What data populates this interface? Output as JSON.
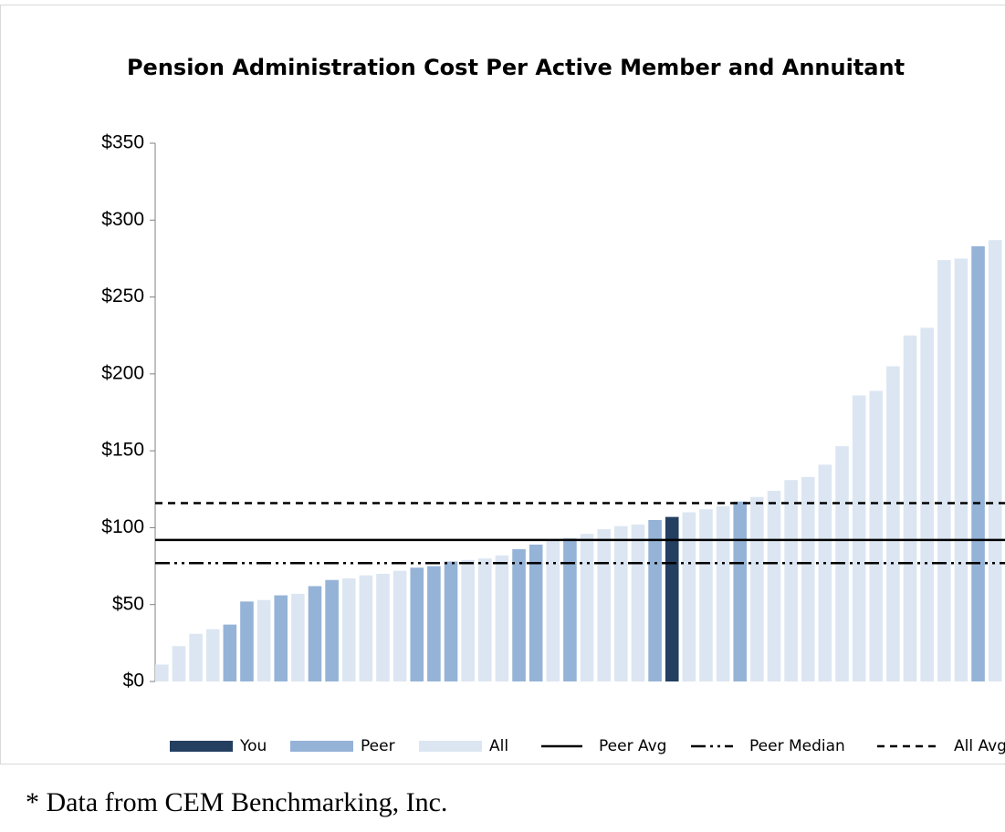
{
  "chart_data": {
    "type": "bar",
    "title": "Pension Administration Cost Per Active Member and Annuitant",
    "categories": [
      null,
      null,
      null,
      null,
      null,
      null,
      null,
      null,
      null,
      null,
      null,
      null,
      null,
      null,
      null,
      null,
      null,
      null,
      null,
      null,
      null,
      null,
      null,
      null,
      null,
      null,
      null,
      null,
      null,
      null,
      null,
      null,
      null,
      null,
      null,
      null,
      null,
      null,
      null,
      null,
      null,
      null,
      null,
      null,
      null,
      null,
      null,
      null,
      null,
      null
    ],
    "series": [
      {
        "name": "You",
        "color": "#243f60",
        "values": [
          null,
          null,
          null,
          null,
          null,
          null,
          null,
          null,
          null,
          null,
          null,
          null,
          null,
          null,
          null,
          null,
          null,
          null,
          null,
          null,
          null,
          null,
          null,
          null,
          null,
          null,
          null,
          null,
          null,
          null,
          107,
          null,
          null,
          null,
          null,
          null,
          null,
          null,
          null,
          null,
          null,
          null,
          null,
          null,
          null,
          null,
          null,
          null,
          null,
          null
        ]
      },
      {
        "name": "Peer",
        "color": "#95b3d7",
        "values": [
          null,
          null,
          null,
          null,
          37,
          52,
          null,
          56,
          null,
          62,
          66,
          null,
          null,
          null,
          null,
          74,
          75,
          78,
          null,
          null,
          null,
          86,
          89,
          null,
          93,
          null,
          null,
          null,
          null,
          105,
          null,
          null,
          null,
          null,
          117,
          null,
          null,
          null,
          null,
          null,
          null,
          null,
          null,
          null,
          null,
          null,
          null,
          null,
          283,
          null
        ]
      },
      {
        "name": "All",
        "color": "#dce6f2",
        "values": [
          11,
          23,
          31,
          34,
          null,
          null,
          53,
          null,
          57,
          null,
          null,
          67,
          69,
          70,
          72,
          null,
          null,
          null,
          79,
          80,
          82,
          null,
          null,
          92,
          null,
          96,
          99,
          101,
          102,
          null,
          null,
          110,
          112,
          114,
          null,
          120,
          124,
          131,
          133,
          141,
          153,
          186,
          189,
          205,
          225,
          230,
          274,
          275,
          null,
          287
        ]
      }
    ],
    "reference_lines": [
      {
        "name": "Peer Avg",
        "value": 92,
        "style": "solid",
        "color": "#000000"
      },
      {
        "name": "Peer Median",
        "value": 77,
        "style": "dashdot",
        "color": "#000000"
      },
      {
        "name": "All Avg",
        "value": 116,
        "style": "dashed",
        "color": "#000000"
      }
    ],
    "ylim": [
      0,
      350
    ],
    "yticks": [
      {
        "value": 0,
        "label": "$0"
      },
      {
        "value": 50,
        "label": "$50"
      },
      {
        "value": 100,
        "label": "$100"
      },
      {
        "value": 150,
        "label": "$150"
      },
      {
        "value": 200,
        "label": "$200"
      },
      {
        "value": 250,
        "label": "$250"
      },
      {
        "value": 300,
        "label": "$300"
      },
      {
        "value": 350,
        "label": "$350"
      }
    ],
    "footnote": "* Data from CEM Benchmarking, Inc."
  }
}
